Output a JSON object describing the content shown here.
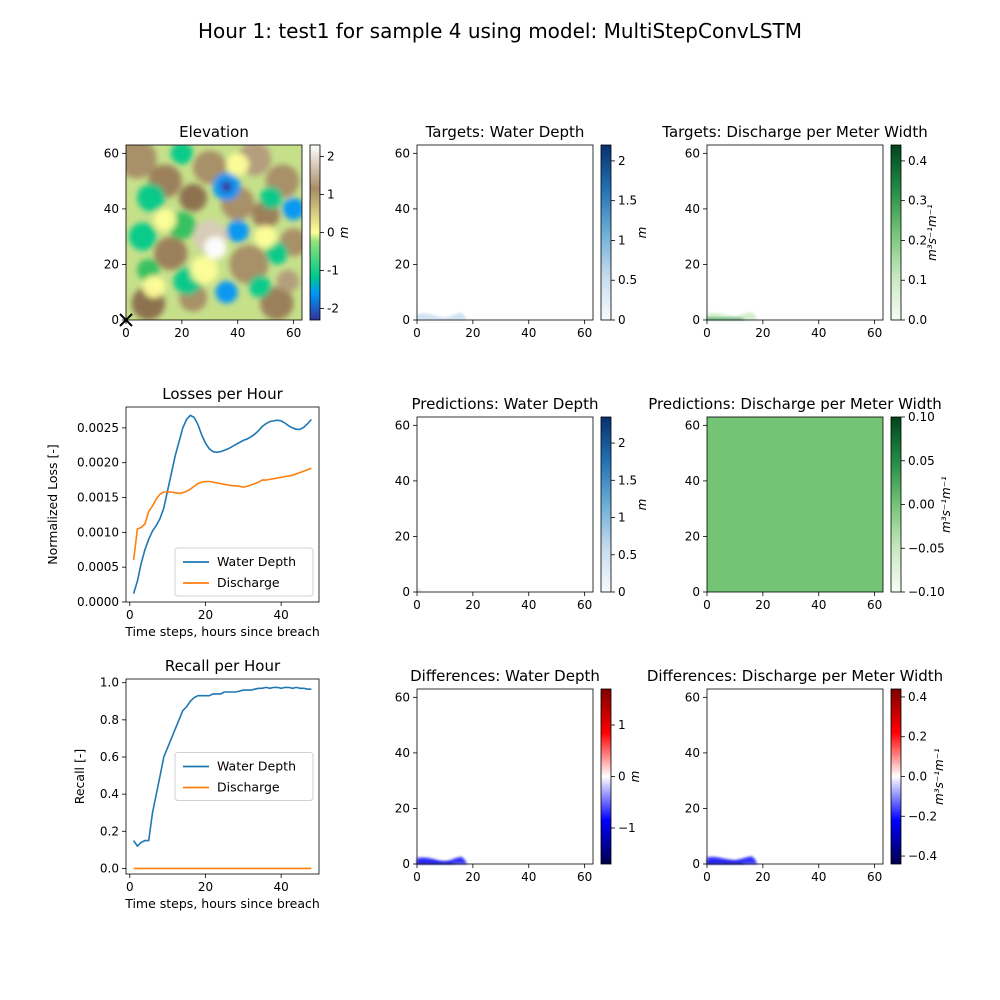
{
  "figure": {
    "suptitle": "Hour 1: test1 for sample 4 using model: MultiStepConvLSTM"
  },
  "colors": {
    "water_depth": "#1f77b4",
    "discharge": "#ff7f0e",
    "pred_discharge_fill": "#74c476"
  },
  "chart_data": [
    {
      "id": "elevation",
      "type": "heatmap",
      "title": "Elevation",
      "xlim": [
        0,
        63
      ],
      "ylim": [
        0,
        63
      ],
      "xticks": [
        0,
        20,
        40,
        60
      ],
      "yticks": [
        0,
        20,
        40,
        60
      ],
      "colormap": "terrain",
      "colorbar": {
        "label": "m",
        "range": [
          -2.3,
          2.3
        ],
        "ticks": [
          -2,
          -1,
          0,
          1,
          2
        ]
      },
      "marker": {
        "symbol": "x",
        "x": 0,
        "y": 0
      }
    },
    {
      "id": "targets-water-depth",
      "type": "heatmap",
      "title": "Targets: Water Depth",
      "xlim": [
        0,
        63
      ],
      "ylim": [
        0,
        63
      ],
      "xticks": [
        0,
        20,
        40,
        60
      ],
      "yticks": [
        0,
        20,
        40,
        60
      ],
      "colormap": "Blues",
      "colorbar": {
        "label": "m",
        "range": [
          0,
          2.2
        ],
        "ticks": [
          0.0,
          0.5,
          1.0,
          1.5,
          2.0
        ]
      },
      "footprint": [
        [
          0,
          2.0
        ],
        [
          2,
          2.4
        ],
        [
          4,
          2.2
        ],
        [
          6,
          1.8
        ],
        [
          8,
          1.2
        ],
        [
          10,
          1.0
        ],
        [
          12,
          1.4
        ],
        [
          14,
          2.2
        ],
        [
          16,
          2.6
        ],
        [
          17,
          1.6
        ],
        [
          18,
          0
        ]
      ]
    },
    {
      "id": "targets-discharge",
      "type": "heatmap",
      "title": "Targets: Discharge per Meter Width",
      "xlim": [
        0,
        63
      ],
      "ylim": [
        0,
        63
      ],
      "xticks": [
        0,
        20,
        40,
        60
      ],
      "yticks": [
        0,
        20,
        40,
        60
      ],
      "colormap": "Greens",
      "colorbar": {
        "label": "m³s⁻¹m⁻¹",
        "range": [
          0,
          0.44
        ],
        "ticks": [
          0.0,
          0.1,
          0.2,
          0.3,
          0.4
        ]
      },
      "footprint": [
        [
          0,
          2.2
        ],
        [
          2,
          2.6
        ],
        [
          4,
          2.4
        ],
        [
          6,
          2.0
        ],
        [
          8,
          1.6
        ],
        [
          10,
          1.4
        ],
        [
          12,
          1.8
        ],
        [
          14,
          2.4
        ],
        [
          16,
          2.8
        ],
        [
          17,
          2.0
        ],
        [
          18,
          0
        ]
      ]
    },
    {
      "id": "losses-per-hour",
      "type": "line",
      "title": "Losses per Hour",
      "xlabel": "Time steps, hours since breach",
      "ylabel": "Normalized Loss [-]",
      "xlim": [
        -1,
        50
      ],
      "ylim": [
        0,
        0.0028
      ],
      "xticks": [
        0,
        20,
        40
      ],
      "yticks": [
        0.0,
        0.0005,
        0.001,
        0.0015,
        0.002,
        0.0025
      ],
      "yticklabels": [
        "0.0000",
        "0.0005",
        "0.0010",
        "0.0015",
        "0.0020",
        "0.0025"
      ],
      "legend": "lower-right",
      "series": [
        {
          "name": "Water Depth",
          "color": "#1f77b4",
          "x": [
            1,
            2,
            3,
            4,
            5,
            6,
            7,
            8,
            9,
            10,
            11,
            12,
            13,
            14,
            15,
            16,
            17,
            18,
            19,
            20,
            21,
            22,
            23,
            24,
            25,
            26,
            27,
            28,
            29,
            30,
            31,
            32,
            33,
            34,
            35,
            36,
            37,
            38,
            39,
            40,
            41,
            42,
            43,
            44,
            45,
            46,
            47,
            48
          ],
          "y": [
            0.00012,
            0.0003,
            0.00055,
            0.00075,
            0.0009,
            0.00102,
            0.0011,
            0.0012,
            0.00135,
            0.0016,
            0.00185,
            0.0021,
            0.0023,
            0.0025,
            0.00262,
            0.00268,
            0.00265,
            0.00255,
            0.0024,
            0.00228,
            0.0022,
            0.00216,
            0.00215,
            0.00216,
            0.00218,
            0.0022,
            0.00223,
            0.00226,
            0.00229,
            0.00232,
            0.00234,
            0.00237,
            0.00241,
            0.00246,
            0.00252,
            0.00256,
            0.00259,
            0.0026,
            0.00261,
            0.0026,
            0.00257,
            0.00253,
            0.0025,
            0.00248,
            0.00248,
            0.00251,
            0.00256,
            0.00262
          ]
        },
        {
          "name": "Discharge",
          "color": "#ff7f0e",
          "x": [
            1,
            2,
            3,
            4,
            5,
            6,
            7,
            8,
            9,
            10,
            11,
            12,
            13,
            14,
            15,
            16,
            17,
            18,
            19,
            20,
            21,
            22,
            23,
            24,
            25,
            26,
            27,
            28,
            29,
            30,
            31,
            32,
            33,
            34,
            35,
            36,
            37,
            38,
            39,
            40,
            41,
            42,
            43,
            44,
            45,
            46,
            47,
            48
          ],
          "y": [
            0.0006,
            0.00105,
            0.00107,
            0.00112,
            0.0013,
            0.00138,
            0.00148,
            0.00155,
            0.00158,
            0.00158,
            0.00158,
            0.00157,
            0.00156,
            0.00157,
            0.00159,
            0.00162,
            0.00166,
            0.0017,
            0.00172,
            0.00173,
            0.00173,
            0.00172,
            0.00171,
            0.0017,
            0.00169,
            0.00168,
            0.00167,
            0.00167,
            0.00166,
            0.00165,
            0.00166,
            0.00168,
            0.0017,
            0.00172,
            0.00175,
            0.00175,
            0.00176,
            0.00177,
            0.00178,
            0.00179,
            0.0018,
            0.00181,
            0.00182,
            0.00184,
            0.00186,
            0.00188,
            0.0019,
            0.00192
          ]
        }
      ]
    },
    {
      "id": "predictions-water-depth",
      "type": "heatmap",
      "title": "Predictions: Water Depth",
      "xlim": [
        0,
        63
      ],
      "ylim": [
        0,
        63
      ],
      "xticks": [
        0,
        20,
        40,
        60
      ],
      "yticks": [
        0,
        20,
        40,
        60
      ],
      "colormap": "Blues",
      "colorbar": {
        "label": "m",
        "range": [
          0,
          2.35
        ],
        "ticks": [
          0.0,
          0.5,
          1.0,
          1.5,
          2.0
        ]
      },
      "footprint": [
        [
          0,
          1.0
        ],
        [
          1,
          0.8
        ],
        [
          2,
          0
        ]
      ]
    },
    {
      "id": "predictions-discharge",
      "type": "heatmap",
      "title": "Predictions: Discharge per Meter Width",
      "xlim": [
        0,
        63
      ],
      "ylim": [
        0,
        63
      ],
      "xticks": [
        0,
        20,
        40,
        60
      ],
      "yticks": [
        0,
        20,
        40,
        60
      ],
      "colormap": "Greens",
      "colorbar": {
        "label": "m³s⁻¹m⁻¹",
        "range": [
          -0.1,
          0.1
        ],
        "ticks": [
          -0.1,
          -0.05,
          0.0,
          0.05,
          0.1
        ],
        "ticklabels": [
          "−0.10",
          "−0.05",
          "0.00",
          "0.05",
          "0.10"
        ]
      },
      "uniform_value": 0.0
    },
    {
      "id": "recall-per-hour",
      "type": "line",
      "title": "Recall per Hour",
      "xlabel": "Time steps, hours since breach",
      "ylabel": "Recall [-]",
      "xlim": [
        -1,
        50
      ],
      "ylim": [
        -0.03,
        1.02
      ],
      "xticks": [
        0,
        20,
        40
      ],
      "yticks": [
        0.0,
        0.2,
        0.4,
        0.6,
        0.8,
        1.0
      ],
      "yticklabels": [
        "0.0",
        "0.2",
        "0.4",
        "0.6",
        "0.8",
        "1.0"
      ],
      "legend": "center-right",
      "series": [
        {
          "name": "Water Depth",
          "color": "#1f77b4",
          "x": [
            1,
            2,
            3,
            4,
            5,
            6,
            7,
            8,
            9,
            10,
            11,
            12,
            13,
            14,
            15,
            16,
            17,
            18,
            19,
            20,
            21,
            22,
            23,
            24,
            25,
            26,
            27,
            28,
            29,
            30,
            31,
            32,
            33,
            34,
            35,
            36,
            37,
            38,
            39,
            40,
            41,
            42,
            43,
            44,
            45,
            46,
            47,
            48
          ],
          "y": [
            0.15,
            0.12,
            0.14,
            0.15,
            0.15,
            0.3,
            0.4,
            0.5,
            0.6,
            0.65,
            0.7,
            0.75,
            0.8,
            0.85,
            0.87,
            0.9,
            0.92,
            0.93,
            0.93,
            0.93,
            0.93,
            0.94,
            0.94,
            0.94,
            0.95,
            0.95,
            0.95,
            0.95,
            0.955,
            0.96,
            0.96,
            0.96,
            0.965,
            0.97,
            0.97,
            0.975,
            0.97,
            0.975,
            0.975,
            0.97,
            0.975,
            0.975,
            0.97,
            0.975,
            0.97,
            0.97,
            0.965,
            0.965
          ]
        },
        {
          "name": "Discharge",
          "color": "#ff7f0e",
          "x": [
            1,
            48
          ],
          "y": [
            0.0,
            0.0
          ]
        }
      ]
    },
    {
      "id": "differences-water-depth",
      "type": "heatmap",
      "title": "Differences: Water Depth",
      "xlim": [
        0,
        63
      ],
      "ylim": [
        0,
        63
      ],
      "xticks": [
        0,
        20,
        40,
        60
      ],
      "yticks": [
        0,
        20,
        40,
        60
      ],
      "colormap": "seismic",
      "colorbar": {
        "label": "m",
        "range": [
          -1.7,
          1.7
        ],
        "ticks": [
          -1,
          0,
          1
        ],
        "ticklabels": [
          "−1",
          "0",
          "1"
        ]
      },
      "footprint": [
        [
          0,
          2.2
        ],
        [
          2,
          2.4
        ],
        [
          4,
          2.2
        ],
        [
          6,
          1.8
        ],
        [
          8,
          1.2
        ],
        [
          10,
          1.0
        ],
        [
          12,
          1.4
        ],
        [
          14,
          2.2
        ],
        [
          16,
          2.6
        ],
        [
          17,
          1.6
        ],
        [
          18,
          0
        ]
      ]
    },
    {
      "id": "differences-discharge",
      "type": "heatmap",
      "title": "Differences: Discharge per Meter Width",
      "xlim": [
        0,
        63
      ],
      "ylim": [
        0,
        63
      ],
      "xticks": [
        0,
        20,
        40,
        60
      ],
      "yticks": [
        0,
        20,
        40,
        60
      ],
      "colormap": "seismic",
      "colorbar": {
        "label": "m³s⁻¹m⁻¹",
        "range": [
          -0.44,
          0.44
        ],
        "ticks": [
          -0.4,
          -0.2,
          0.0,
          0.2,
          0.4
        ],
        "ticklabels": [
          "−0.4",
          "−0.2",
          "0.0",
          "0.2",
          "0.4"
        ]
      },
      "footprint": [
        [
          0,
          2.4
        ],
        [
          2,
          2.6
        ],
        [
          4,
          2.4
        ],
        [
          6,
          2.0
        ],
        [
          8,
          1.6
        ],
        [
          10,
          1.4
        ],
        [
          12,
          1.8
        ],
        [
          14,
          2.4
        ],
        [
          16,
          2.8
        ],
        [
          17,
          2.0
        ],
        [
          18,
          0
        ]
      ]
    }
  ]
}
